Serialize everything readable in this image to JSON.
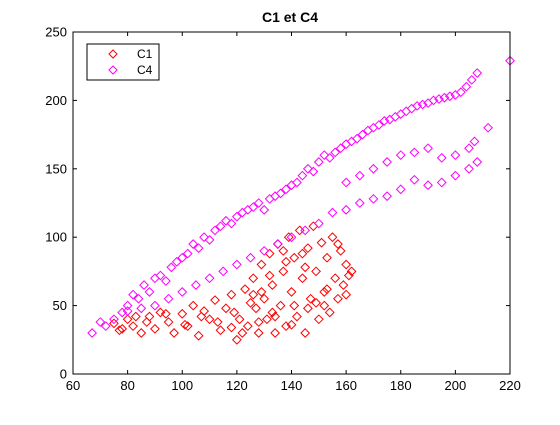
{
  "chart_data": {
    "type": "scatter",
    "title": "C1 et C4",
    "xlabel": "",
    "ylabel": "",
    "xlim": [
      60,
      220
    ],
    "ylim": [
      0,
      250
    ],
    "x_ticks": [
      60,
      80,
      100,
      120,
      140,
      160,
      180,
      200,
      220
    ],
    "y_ticks": [
      0,
      50,
      100,
      150,
      200,
      250
    ],
    "grid": false,
    "legend_position": "top-left",
    "marker": "diamond",
    "series": [
      {
        "name": "C1",
        "color": "#ff0000",
        "points": [
          [
            75,
            37
          ],
          [
            78,
            33
          ],
          [
            80,
            40
          ],
          [
            82,
            35
          ],
          [
            85,
            30
          ],
          [
            88,
            42
          ],
          [
            90,
            33
          ],
          [
            92,
            45
          ],
          [
            95,
            38
          ],
          [
            97,
            30
          ],
          [
            100,
            44
          ],
          [
            102,
            35
          ],
          [
            104,
            50
          ],
          [
            106,
            28
          ],
          [
            108,
            46
          ],
          [
            110,
            40
          ],
          [
            112,
            54
          ],
          [
            114,
            32
          ],
          [
            116,
            48
          ],
          [
            118,
            58
          ],
          [
            120,
            25
          ],
          [
            121,
            40
          ],
          [
            123,
            62
          ],
          [
            124,
            35
          ],
          [
            126,
            70
          ],
          [
            127,
            48
          ],
          [
            128,
            30
          ],
          [
            129,
            80
          ],
          [
            130,
            55
          ],
          [
            131,
            40
          ],
          [
            132,
            88
          ],
          [
            133,
            65
          ],
          [
            134,
            30
          ],
          [
            135,
            95
          ],
          [
            136,
            50
          ],
          [
            137,
            75
          ],
          [
            138,
            35
          ],
          [
            139,
            100
          ],
          [
            140,
            60
          ],
          [
            141,
            85
          ],
          [
            142,
            42
          ],
          [
            143,
            105
          ],
          [
            144,
            70
          ],
          [
            145,
            30
          ],
          [
            146,
            92
          ],
          [
            147,
            55
          ],
          [
            148,
            108
          ],
          [
            149,
            75
          ],
          [
            150,
            40
          ],
          [
            151,
            96
          ],
          [
            152,
            60
          ],
          [
            153,
            85
          ],
          [
            154,
            45
          ],
          [
            155,
            100
          ],
          [
            156,
            70
          ],
          [
            157,
            55
          ],
          [
            158,
            90
          ],
          [
            159,
            65
          ],
          [
            160,
            80
          ],
          [
            161,
            72
          ],
          [
            162,
            75
          ],
          [
            160,
            58
          ],
          [
            157,
            95
          ],
          [
            153,
            62
          ],
          [
            149,
            52
          ],
          [
            145,
            78
          ],
          [
            141,
            50
          ],
          [
            137,
            90
          ],
          [
            133,
            45
          ],
          [
            129,
            60
          ],
          [
            125,
            52
          ],
          [
            119,
            45
          ],
          [
            113,
            38
          ],
          [
            107,
            42
          ],
          [
            101,
            36
          ],
          [
            94,
            44
          ],
          [
            87,
            38
          ],
          [
            83,
            42
          ],
          [
            77,
            32
          ],
          [
            118,
            34
          ],
          [
            122,
            30
          ],
          [
            128,
            38
          ],
          [
            134,
            42
          ],
          [
            140,
            36
          ],
          [
            146,
            48
          ],
          [
            152,
            50
          ],
          [
            126,
            58
          ],
          [
            132,
            72
          ],
          [
            138,
            82
          ],
          [
            144,
            88
          ]
        ]
      },
      {
        "name": "C4",
        "color": "#ff00ff",
        "points": [
          [
            67,
            30
          ],
          [
            70,
            38
          ],
          [
            72,
            35
          ],
          [
            75,
            40
          ],
          [
            78,
            45
          ],
          [
            80,
            50
          ],
          [
            82,
            58
          ],
          [
            84,
            55
          ],
          [
            86,
            65
          ],
          [
            88,
            60
          ],
          [
            90,
            70
          ],
          [
            92,
            72
          ],
          [
            94,
            68
          ],
          [
            96,
            78
          ],
          [
            98,
            82
          ],
          [
            100,
            85
          ],
          [
            102,
            88
          ],
          [
            104,
            95
          ],
          [
            106,
            92
          ],
          [
            108,
            100
          ],
          [
            110,
            98
          ],
          [
            112,
            105
          ],
          [
            114,
            108
          ],
          [
            116,
            112
          ],
          [
            118,
            110
          ],
          [
            120,
            115
          ],
          [
            122,
            118
          ],
          [
            124,
            120
          ],
          [
            126,
            122
          ],
          [
            128,
            125
          ],
          [
            130,
            120
          ],
          [
            132,
            128
          ],
          [
            134,
            130
          ],
          [
            136,
            132
          ],
          [
            138,
            135
          ],
          [
            140,
            138
          ],
          [
            142,
            140
          ],
          [
            144,
            145
          ],
          [
            146,
            150
          ],
          [
            148,
            148
          ],
          [
            150,
            155
          ],
          [
            152,
            160
          ],
          [
            154,
            158
          ],
          [
            156,
            162
          ],
          [
            158,
            165
          ],
          [
            160,
            168
          ],
          [
            162,
            170
          ],
          [
            164,
            172
          ],
          [
            166,
            175
          ],
          [
            168,
            178
          ],
          [
            170,
            180
          ],
          [
            172,
            182
          ],
          [
            174,
            185
          ],
          [
            176,
            186
          ],
          [
            178,
            188
          ],
          [
            180,
            190
          ],
          [
            182,
            192
          ],
          [
            184,
            194
          ],
          [
            186,
            196
          ],
          [
            188,
            197
          ],
          [
            190,
            198
          ],
          [
            192,
            200
          ],
          [
            194,
            201
          ],
          [
            196,
            202
          ],
          [
            198,
            203
          ],
          [
            200,
            204
          ],
          [
            202,
            206
          ],
          [
            204,
            210
          ],
          [
            206,
            215
          ],
          [
            208,
            220
          ],
          [
            212,
            180
          ],
          [
            220,
            229
          ],
          [
            160,
            140
          ],
          [
            165,
            145
          ],
          [
            170,
            150
          ],
          [
            175,
            155
          ],
          [
            180,
            160
          ],
          [
            185,
            162
          ],
          [
            190,
            165
          ],
          [
            195,
            158
          ],
          [
            200,
            160
          ],
          [
            205,
            165
          ],
          [
            205,
            150
          ],
          [
            200,
            145
          ],
          [
            195,
            140
          ],
          [
            190,
            138
          ],
          [
            185,
            142
          ],
          [
            180,
            135
          ],
          [
            175,
            130
          ],
          [
            170,
            128
          ],
          [
            165,
            125
          ],
          [
            160,
            120
          ],
          [
            155,
            118
          ],
          [
            150,
            110
          ],
          [
            145,
            105
          ],
          [
            140,
            100
          ],
          [
            135,
            95
          ],
          [
            130,
            90
          ],
          [
            125,
            85
          ],
          [
            120,
            80
          ],
          [
            115,
            75
          ],
          [
            110,
            70
          ],
          [
            105,
            65
          ],
          [
            100,
            60
          ],
          [
            95,
            55
          ],
          [
            90,
            50
          ],
          [
            85,
            48
          ],
          [
            80,
            46
          ],
          [
            208,
            155
          ],
          [
            207,
            170
          ]
        ]
      }
    ]
  }
}
